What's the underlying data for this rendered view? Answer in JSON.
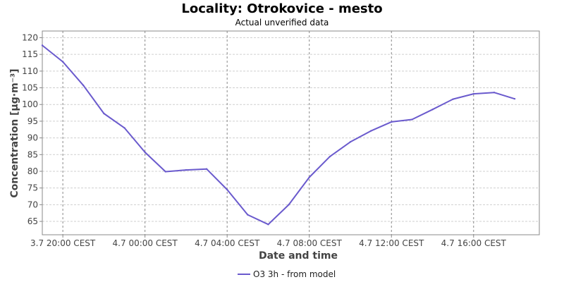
{
  "chart_data": {
    "type": "line",
    "title": "Locality: Otrokovice - mesto",
    "subtitle": "Actual unverified data",
    "xlabel": "Date and time",
    "ylabel": "Concentration [µg·m⁻³]",
    "ylim": [
      61,
      122
    ],
    "yticks": [
      65,
      70,
      75,
      80,
      85,
      90,
      95,
      100,
      105,
      110,
      115,
      120
    ],
    "xlim": [
      -1,
      23.2
    ],
    "xticks": [
      {
        "pos": 0,
        "label": "3.7 20:00 CEST"
      },
      {
        "pos": 4,
        "label": "4.7 00:00 CEST"
      },
      {
        "pos": 8,
        "label": "4.7 04:00 CEST"
      },
      {
        "pos": 12,
        "label": "4.7 08:00 CEST"
      },
      {
        "pos": 16,
        "label": "4.7 12:00 CEST"
      },
      {
        "pos": 20,
        "label": "4.7 16:00 CEST"
      }
    ],
    "grid": true,
    "legend_position": "bottom",
    "series": [
      {
        "name": "O3 3h - from model",
        "color": "#6a5acd",
        "x": [
          -1,
          0,
          1,
          2,
          3,
          4,
          5,
          6,
          7,
          8,
          9,
          10,
          11,
          12,
          13,
          14,
          15,
          16,
          17,
          18,
          19,
          20,
          21,
          22
        ],
        "values": [
          117.7,
          112.8,
          105.7,
          97.3,
          93.0,
          85.7,
          79.9,
          80.4,
          80.7,
          74.5,
          67.0,
          64.1,
          70.0,
          78.2,
          84.4,
          88.8,
          92.1,
          94.8,
          95.5,
          98.5,
          101.6,
          103.2,
          103.6,
          101.7
        ]
      }
    ]
  }
}
